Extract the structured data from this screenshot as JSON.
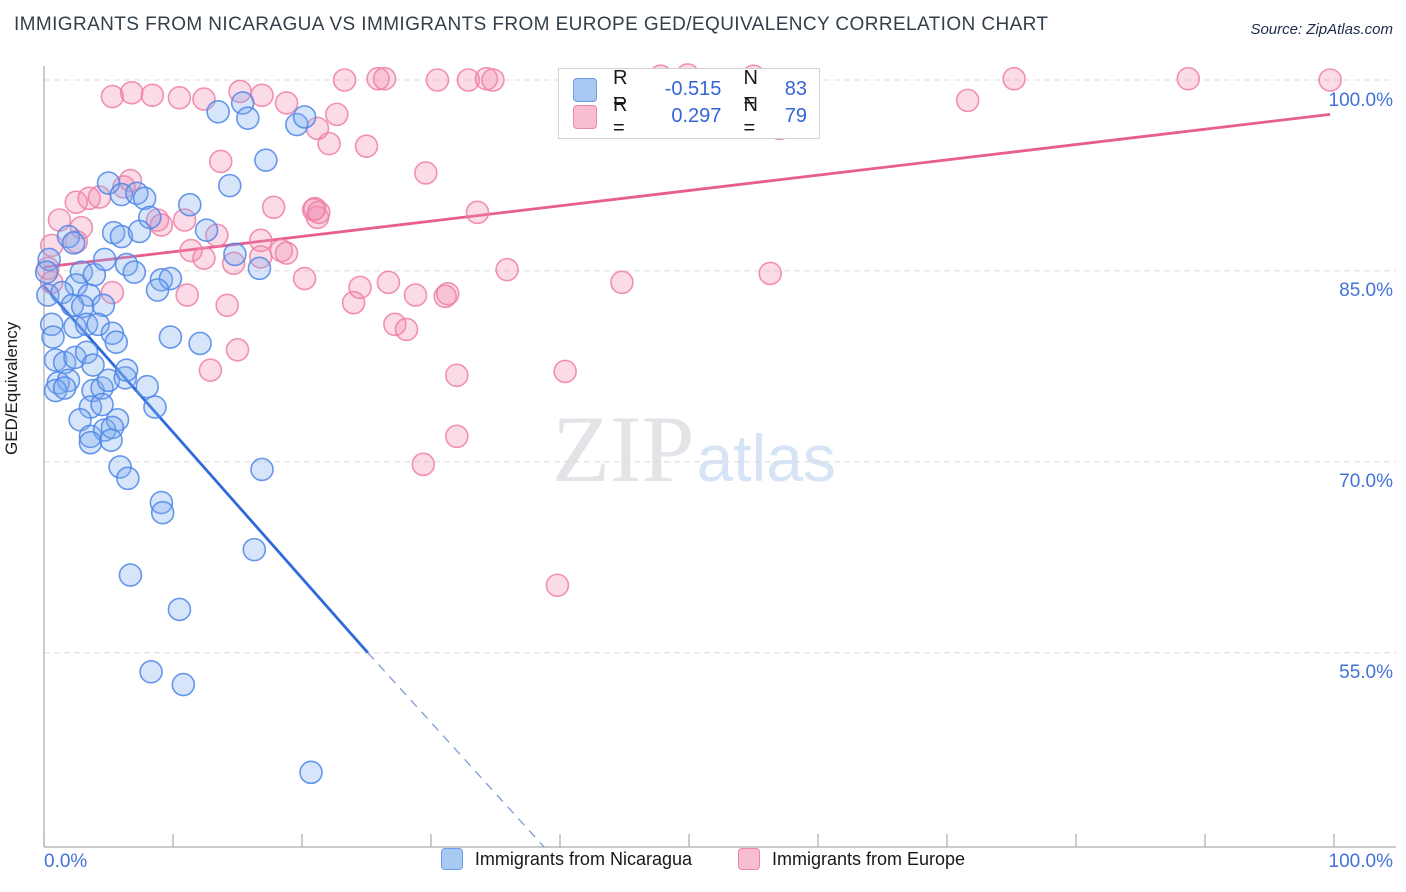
{
  "header": {
    "title": "IMMIGRANTS FROM NICARAGUA VS IMMIGRANTS FROM EUROPE GED/EQUIVALENCY CORRELATION CHART",
    "source": "Source: ZipAtlas.com"
  },
  "watermark": {
    "zip": "ZIP",
    "atlas": "atlas"
  },
  "y_axis": {
    "label": "GED/Equivalency",
    "tick_labels": [
      "100.0%",
      "85.0%",
      "70.0%",
      "55.0%"
    ]
  },
  "x_axis": {
    "left_label": "0.0%",
    "right_label": "100.0%"
  },
  "stats_legend": {
    "rows": [
      {
        "series": "Immigrants from Nicaragua",
        "r_label": "R =",
        "r_value": "-0.515",
        "n_label": "N =",
        "n_value": "83"
      },
      {
        "series": "Immigrants from Europe",
        "r_label": "R =",
        "r_value": "0.297",
        "n_label": "N =",
        "n_value": "79"
      }
    ]
  },
  "series_legend": [
    {
      "label": "Immigrants from Nicaragua"
    },
    {
      "label": "Immigrants from Europe"
    }
  ],
  "colors": {
    "accent_text_blue": "#3565d6",
    "axis_label_blue": "#4272d6",
    "blue_point_stroke": "#4e86e8",
    "blue_point_fill": "#7faef0",
    "pink_point_stroke": "#ee7fa5",
    "pink_point_fill": "#f48fb5",
    "blue_trend": "#2f6ad9",
    "pink_trend": "#e75e8f",
    "gridline": "#dcdcdc",
    "axis_line": "#ababab"
  },
  "chart_data": {
    "type": "scatter",
    "title": "IMMIGRANTS FROM NICARAGUA VS IMMIGRANTS FROM EUROPE GED/EQUIVALENCY CORRELATION CHART",
    "xlabel": "",
    "ylabel": "GED/Equivalency",
    "x_range": [
      0,
      100
    ],
    "y_range": [
      39.5,
      101.5
    ],
    "y_gridlines": [
      100,
      85,
      70,
      55
    ],
    "x_tick_step": 10,
    "legend_position": "bottom",
    "series": [
      {
        "name": "Immigrants from Nicaragua",
        "r": -0.515,
        "n": 83,
        "points": [
          [
            13.5,
            97.5
          ],
          [
            15.4,
            98.2
          ],
          [
            15.8,
            97.0
          ],
          [
            19.6,
            96.5
          ],
          [
            20.2,
            97.1
          ],
          [
            17.2,
            93.7
          ],
          [
            14.4,
            91.7
          ],
          [
            5.0,
            91.9
          ],
          [
            6.0,
            91.0
          ],
          [
            7.2,
            91.1
          ],
          [
            7.8,
            90.7
          ],
          [
            11.3,
            90.2
          ],
          [
            8.2,
            89.2
          ],
          [
            5.4,
            88.0
          ],
          [
            6.0,
            87.7
          ],
          [
            7.4,
            88.1
          ],
          [
            12.6,
            88.2
          ],
          [
            1.9,
            87.7
          ],
          [
            2.3,
            87.2
          ],
          [
            0.4,
            85.9
          ],
          [
            0.2,
            84.9
          ],
          [
            2.9,
            84.9
          ],
          [
            3.9,
            84.7
          ],
          [
            4.7,
            85.9
          ],
          [
            6.4,
            85.5
          ],
          [
            7.0,
            84.9
          ],
          [
            9.1,
            84.3
          ],
          [
            9.8,
            84.4
          ],
          [
            14.8,
            86.3
          ],
          [
            16.7,
            85.2
          ],
          [
            2.5,
            83.9
          ],
          [
            3.5,
            83.1
          ],
          [
            8.8,
            83.5
          ],
          [
            0.3,
            83.1
          ],
          [
            1.4,
            83.3
          ],
          [
            2.2,
            82.3
          ],
          [
            3.0,
            82.2
          ],
          [
            4.6,
            82.3
          ],
          [
            0.6,
            80.8
          ],
          [
            0.7,
            79.8
          ],
          [
            2.4,
            80.6
          ],
          [
            3.3,
            80.8
          ],
          [
            4.2,
            80.8
          ],
          [
            5.3,
            80.1
          ],
          [
            9.8,
            79.8
          ],
          [
            12.1,
            79.3
          ],
          [
            5.6,
            79.4
          ],
          [
            0.9,
            78.0
          ],
          [
            1.6,
            77.8
          ],
          [
            2.4,
            78.2
          ],
          [
            3.3,
            78.6
          ],
          [
            3.8,
            77.6
          ],
          [
            1.1,
            76.2
          ],
          [
            1.9,
            76.4
          ],
          [
            0.9,
            75.6
          ],
          [
            1.6,
            75.8
          ],
          [
            3.8,
            75.6
          ],
          [
            4.5,
            75.8
          ],
          [
            5.0,
            76.4
          ],
          [
            6.3,
            76.6
          ],
          [
            6.4,
            77.2
          ],
          [
            3.6,
            74.3
          ],
          [
            4.5,
            74.5
          ],
          [
            2.8,
            73.3
          ],
          [
            3.6,
            72.0
          ],
          [
            4.7,
            72.5
          ],
          [
            5.7,
            73.3
          ],
          [
            5.3,
            72.7
          ],
          [
            8.0,
            75.9
          ],
          [
            8.6,
            74.3
          ],
          [
            3.6,
            71.5
          ],
          [
            5.2,
            71.7
          ],
          [
            5.9,
            69.6
          ],
          [
            6.5,
            68.7
          ],
          [
            9.1,
            66.8
          ],
          [
            9.2,
            66.0
          ],
          [
            16.9,
            69.4
          ],
          [
            16.3,
            63.1
          ],
          [
            6.7,
            61.1
          ],
          [
            10.5,
            58.4
          ],
          [
            8.3,
            53.5
          ],
          [
            10.8,
            52.5
          ],
          [
            20.7,
            45.6
          ]
        ]
      },
      {
        "name": "Immigrants from Europe",
        "r": 0.297,
        "n": 79,
        "points": [
          [
            23.3,
            100.0
          ],
          [
            25.9,
            100.1
          ],
          [
            26.4,
            100.1
          ],
          [
            30.5,
            100.0
          ],
          [
            32.9,
            100.0
          ],
          [
            34.3,
            100.1
          ],
          [
            34.8,
            100.0
          ],
          [
            47.8,
            100.3
          ],
          [
            49.9,
            100.4
          ],
          [
            55.0,
            100.3
          ],
          [
            75.2,
            100.1
          ],
          [
            88.7,
            100.1
          ],
          [
            99.7,
            100.0
          ],
          [
            71.6,
            98.4
          ],
          [
            57.0,
            96.2
          ],
          [
            22.7,
            97.3
          ],
          [
            22.1,
            95.0
          ],
          [
            25.0,
            94.8
          ],
          [
            13.7,
            93.6
          ],
          [
            29.6,
            92.7
          ],
          [
            33.6,
            89.6
          ],
          [
            56.3,
            84.8
          ],
          [
            44.8,
            84.1
          ],
          [
            35.9,
            85.1
          ],
          [
            40.4,
            77.1
          ],
          [
            32.0,
            76.8
          ],
          [
            32.0,
            72.0
          ],
          [
            29.4,
            69.8
          ],
          [
            39.8,
            60.3
          ],
          [
            24.5,
            83.7
          ],
          [
            26.7,
            84.1
          ],
          [
            28.8,
            83.1
          ],
          [
            31.1,
            83.0
          ],
          [
            31.3,
            83.2
          ],
          [
            27.2,
            80.8
          ],
          [
            28.1,
            80.4
          ],
          [
            20.2,
            84.4
          ],
          [
            21.0,
            89.9
          ],
          [
            21.2,
            89.2
          ],
          [
            8.8,
            89.0
          ],
          [
            9.1,
            88.6
          ],
          [
            10.9,
            89.0
          ],
          [
            13.4,
            87.8
          ],
          [
            16.8,
            87.4
          ],
          [
            17.8,
            90.0
          ],
          [
            20.9,
            89.8
          ],
          [
            21.3,
            89.6
          ],
          [
            11.4,
            86.6
          ],
          [
            12.4,
            86.0
          ],
          [
            14.7,
            85.6
          ],
          [
            16.8,
            86.1
          ],
          [
            18.4,
            86.6
          ],
          [
            18.8,
            86.4
          ],
          [
            2.5,
            90.4
          ],
          [
            3.5,
            90.7
          ],
          [
            4.3,
            90.8
          ],
          [
            6.2,
            91.6
          ],
          [
            6.7,
            92.1
          ],
          [
            1.2,
            89.0
          ],
          [
            2.9,
            88.4
          ],
          [
            0.6,
            87.0
          ],
          [
            2.5,
            87.3
          ],
          [
            5.3,
            83.3
          ],
          [
            11.1,
            83.1
          ],
          [
            14.2,
            82.3
          ],
          [
            15.0,
            78.8
          ],
          [
            12.9,
            77.2
          ],
          [
            0.3,
            85.2
          ],
          [
            0.6,
            84.1
          ],
          [
            5.3,
            98.7
          ],
          [
            6.8,
            99.0
          ],
          [
            8.4,
            98.8
          ],
          [
            10.5,
            98.6
          ],
          [
            12.4,
            98.5
          ],
          [
            15.2,
            99.1
          ],
          [
            16.9,
            98.8
          ],
          [
            18.8,
            98.2
          ],
          [
            21.2,
            96.2
          ],
          [
            24.0,
            82.5
          ]
        ]
      }
    ],
    "trend_lines": [
      {
        "series": "Immigrants from Nicaragua",
        "solid": [
          [
            0,
            83.8
          ],
          [
            25.1,
            55.0
          ]
        ],
        "dashed": [
          [
            25.1,
            55.0
          ],
          [
            38.8,
            39.7
          ]
        ]
      },
      {
        "series": "Immigrants from Europe",
        "solid": [
          [
            0,
            85.3
          ],
          [
            99.7,
            97.3
          ]
        ]
      }
    ]
  }
}
